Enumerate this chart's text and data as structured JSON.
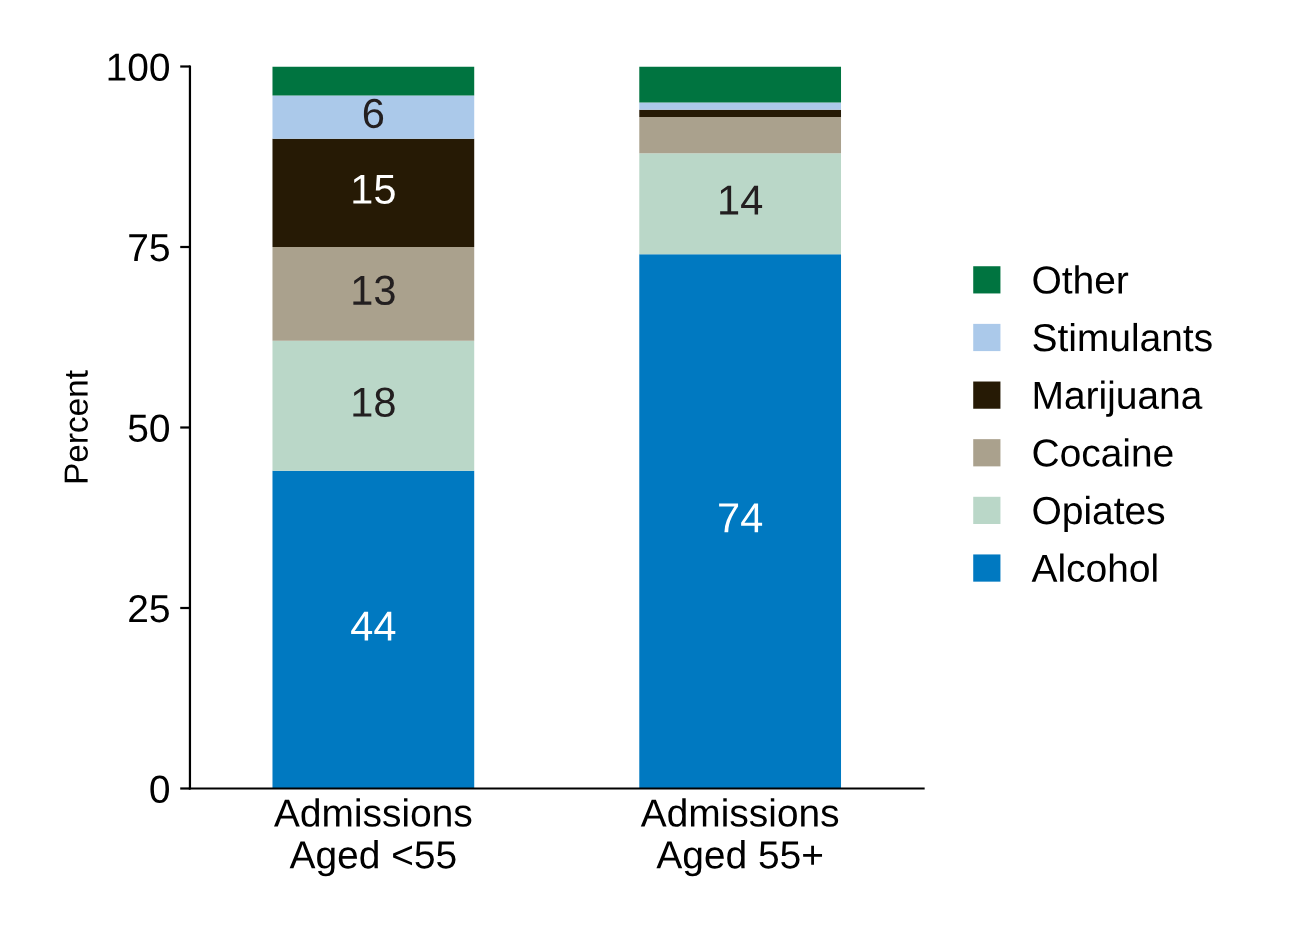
{
  "chart_data": {
    "type": "bar",
    "stacked": true,
    "ylabel": "Percent",
    "categories": [
      "Admissions\nAged <55",
      "Admissions\nAged 55+"
    ],
    "series": [
      {
        "name": "Alcohol",
        "color": "#0079c1",
        "values": [
          44,
          74
        ],
        "value_labels": [
          "44",
          "74"
        ]
      },
      {
        "name": "Opiates",
        "color": "#bad7c8",
        "values": [
          18,
          14
        ],
        "value_labels": [
          "18",
          "14"
        ]
      },
      {
        "name": "Cocaine",
        "color": "#aaa18d",
        "values": [
          13,
          5
        ],
        "value_labels": [
          "13",
          null
        ]
      },
      {
        "name": "Marijuana",
        "color": "#261a05",
        "values": [
          15,
          1
        ],
        "value_labels": [
          "15",
          null
        ]
      },
      {
        "name": "Stimulants",
        "color": "#abc9ea",
        "values": [
          6,
          1
        ],
        "value_labels": [
          "6",
          null
        ]
      },
      {
        "name": "Other",
        "color": "#007440",
        "values": [
          4,
          5
        ],
        "value_labels": [
          null,
          null
        ]
      }
    ],
    "ylim": [
      0,
      100
    ],
    "yticks": [
      0,
      25,
      50,
      75,
      100
    ],
    "grid": false,
    "legend": "right"
  }
}
